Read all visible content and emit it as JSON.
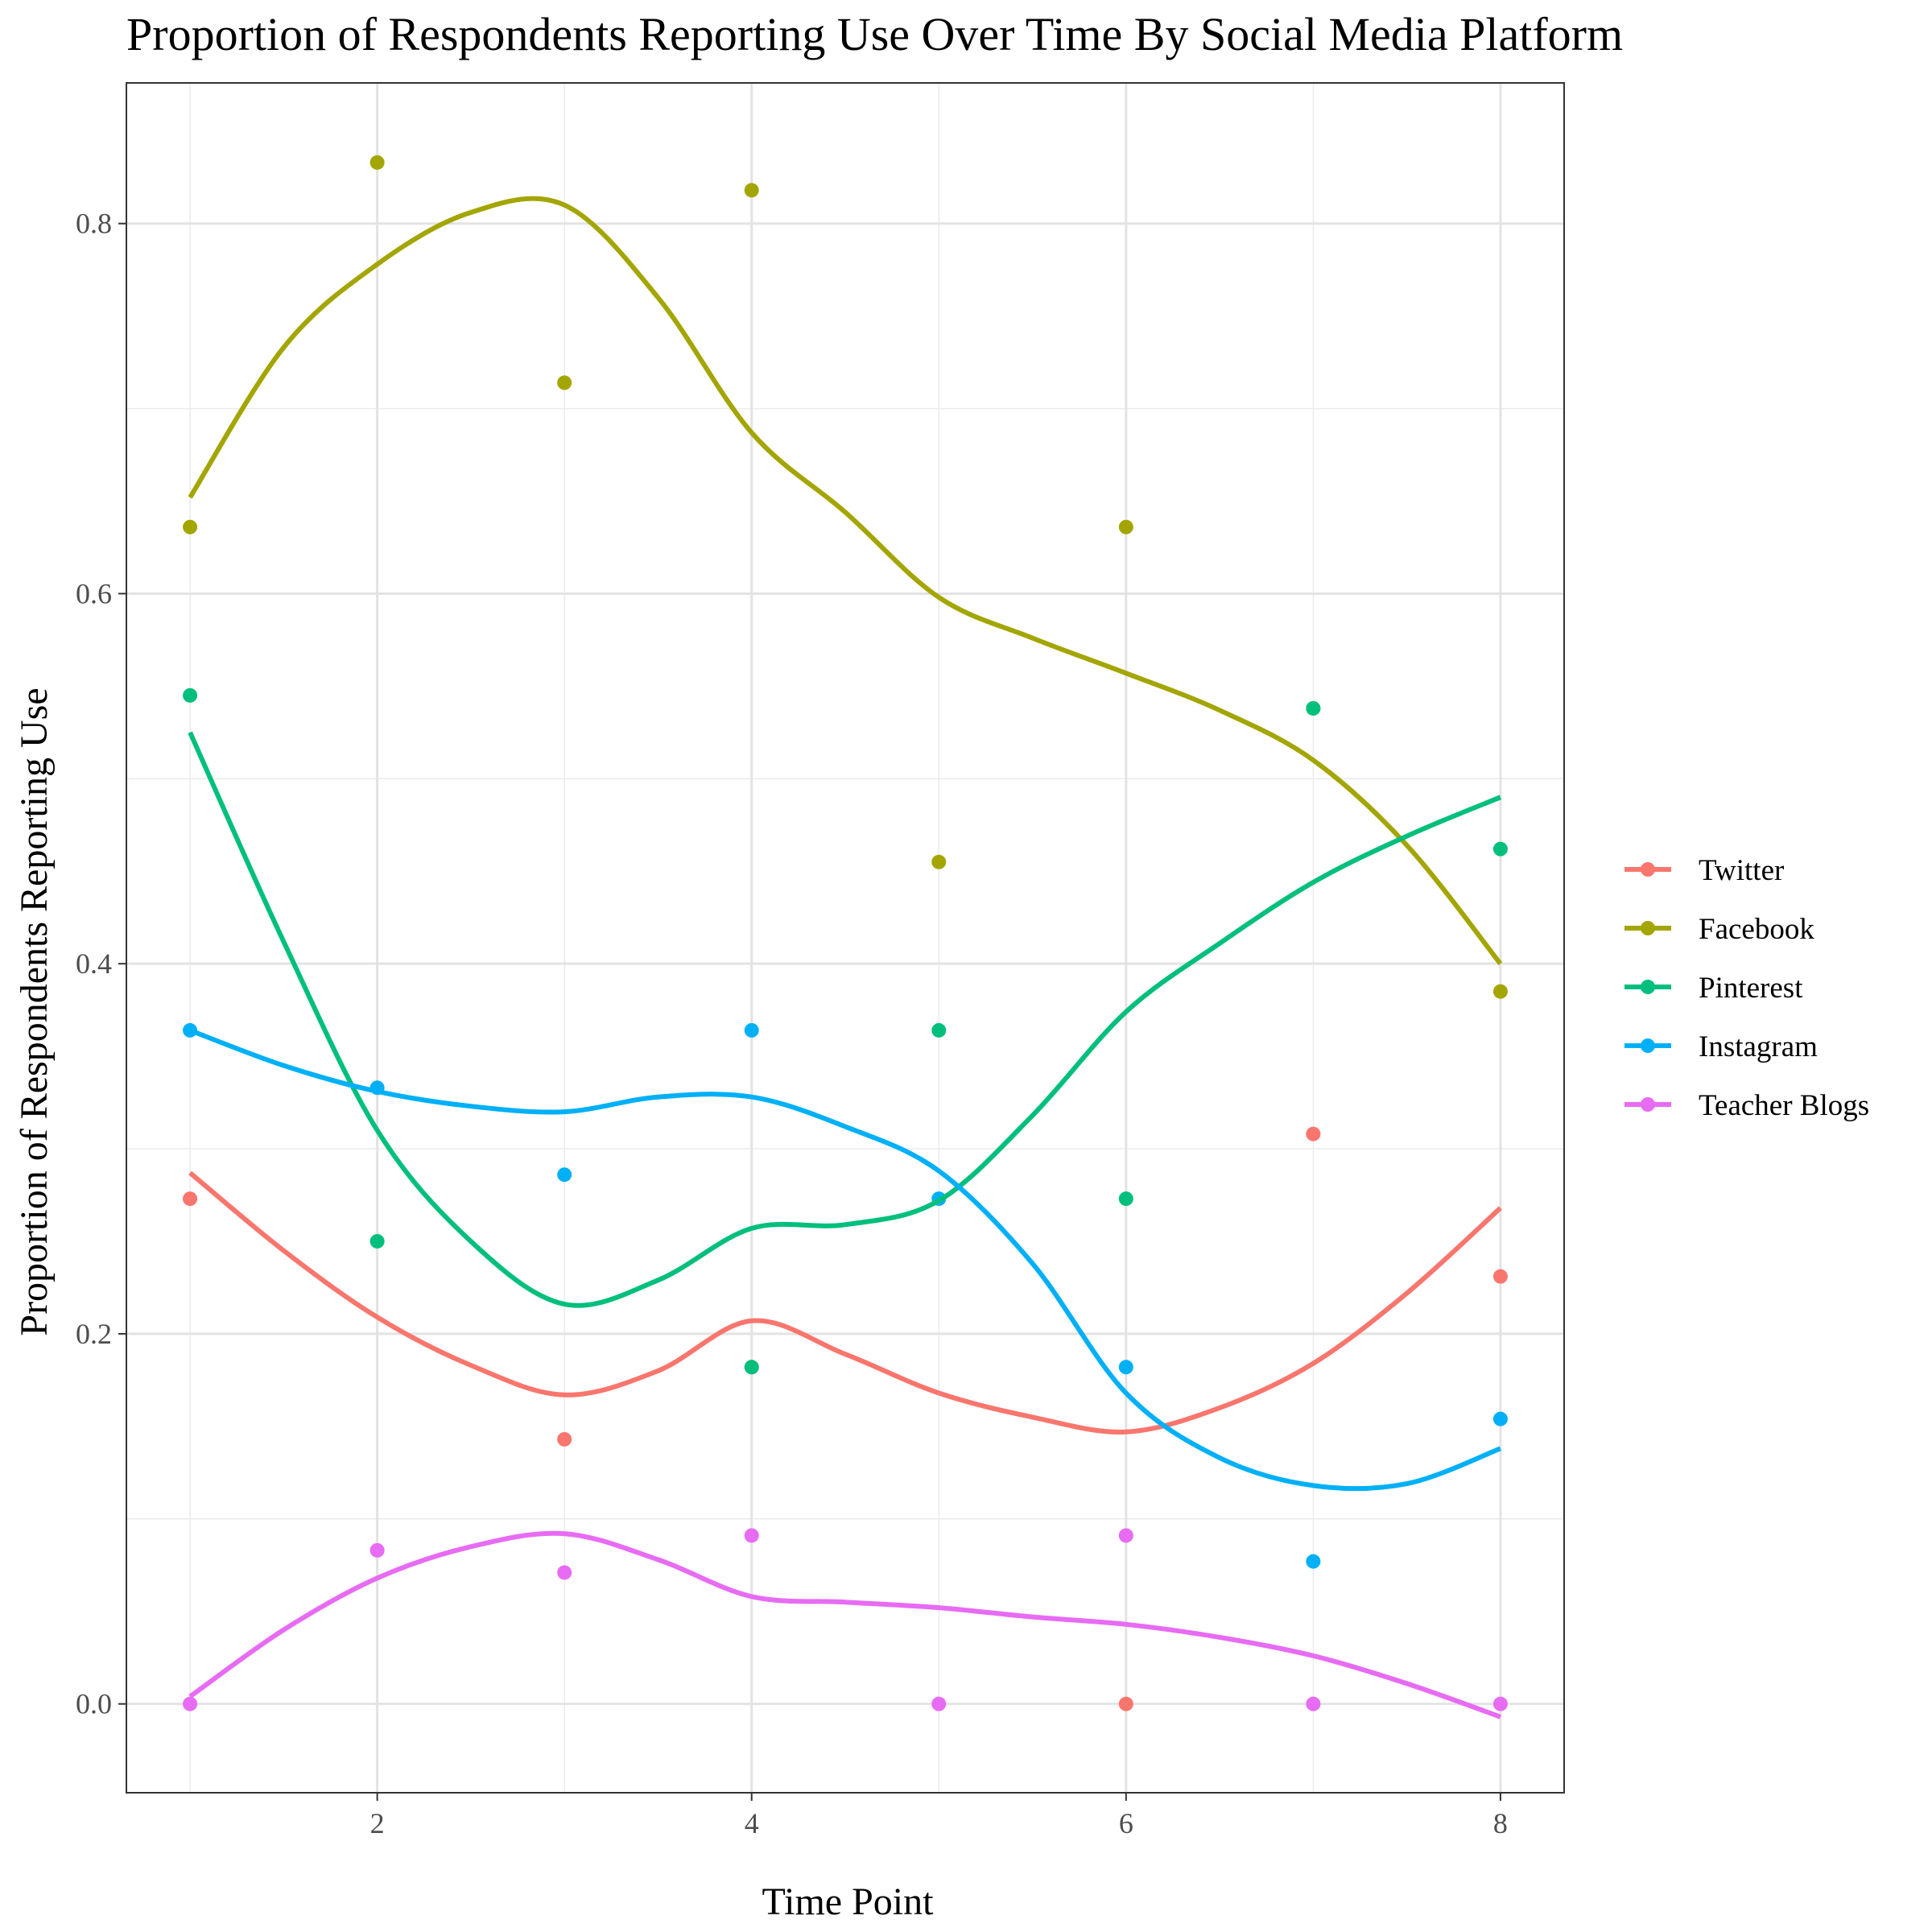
{
  "chart_data": {
    "type": "line",
    "title": "Proportion of Respondents Reporting Use Over Time By Social Media Platform",
    "xlabel": "Time Point",
    "ylabel": "Proportion of Respondents Reporting Use",
    "xlim": [
      0.66,
      8.34
    ],
    "ylim": [
      -0.048,
      0.876
    ],
    "x_ticks": [
      2,
      4,
      6,
      8
    ],
    "x_tick_labels": [
      "2",
      "4",
      "6",
      "8"
    ],
    "y_ticks": [
      0.0,
      0.2,
      0.4,
      0.6,
      0.8
    ],
    "y_tick_labels": [
      "0.0",
      "0.2",
      "0.4",
      "0.6",
      "0.8"
    ],
    "grid": true,
    "legend_position": "right",
    "series": [
      {
        "name": "Twitter",
        "color": "#F8766D",
        "points": [
          [
            1,
            0.273
          ],
          [
            3,
            0.143
          ],
          [
            4,
            0.182
          ],
          [
            6,
            0.0
          ],
          [
            7,
            0.308
          ],
          [
            8,
            0.231
          ]
        ],
        "smooth": [
          [
            1,
            0.287
          ],
          [
            1.5,
            0.245
          ],
          [
            2,
            0.209
          ],
          [
            2.5,
            0.183
          ],
          [
            3,
            0.167
          ],
          [
            3.5,
            0.18
          ],
          [
            4,
            0.207
          ],
          [
            4.5,
            0.189
          ],
          [
            5,
            0.168
          ],
          [
            5.5,
            0.155
          ],
          [
            6,
            0.147
          ],
          [
            6.5,
            0.16
          ],
          [
            7,
            0.184
          ],
          [
            7.5,
            0.222
          ],
          [
            8,
            0.268
          ]
        ]
      },
      {
        "name": "Facebook",
        "color": "#A3A500",
        "points": [
          [
            1,
            0.636
          ],
          [
            2,
            0.833
          ],
          [
            3,
            0.714
          ],
          [
            4,
            0.818
          ],
          [
            5,
            0.455
          ],
          [
            6,
            0.636
          ],
          [
            7,
            0.538
          ],
          [
            8,
            0.385
          ]
        ],
        "smooth": [
          [
            1,
            0.652
          ],
          [
            1.5,
            0.733
          ],
          [
            2,
            0.778
          ],
          [
            2.5,
            0.806
          ],
          [
            3,
            0.81
          ],
          [
            3.5,
            0.76
          ],
          [
            4,
            0.687
          ],
          [
            4.5,
            0.644
          ],
          [
            5,
            0.598
          ],
          [
            5.5,
            0.576
          ],
          [
            6,
            0.557
          ],
          [
            6.5,
            0.537
          ],
          [
            7,
            0.51
          ],
          [
            7.5,
            0.464
          ],
          [
            8,
            0.4
          ]
        ]
      },
      {
        "name": "Pinterest",
        "color": "#00BF7D",
        "points": [
          [
            1,
            0.545
          ],
          [
            2,
            0.25
          ],
          [
            4,
            0.182
          ],
          [
            5,
            0.364
          ],
          [
            6,
            0.273
          ],
          [
            7,
            0.538
          ],
          [
            8,
            0.462
          ]
        ],
        "smooth": [
          [
            1,
            0.525
          ],
          [
            1.5,
            0.412
          ],
          [
            2,
            0.31
          ],
          [
            2.5,
            0.25
          ],
          [
            3,
            0.216
          ],
          [
            3.5,
            0.229
          ],
          [
            4,
            0.257
          ],
          [
            4.5,
            0.259
          ],
          [
            5,
            0.272
          ],
          [
            5.5,
            0.318
          ],
          [
            6,
            0.374
          ],
          [
            6.5,
            0.411
          ],
          [
            7,
            0.444
          ],
          [
            7.5,
            0.469
          ],
          [
            8,
            0.49
          ]
        ]
      },
      {
        "name": "Instagram",
        "color": "#00B0F6",
        "points": [
          [
            1,
            0.364
          ],
          [
            2,
            0.333
          ],
          [
            3,
            0.286
          ],
          [
            4,
            0.364
          ],
          [
            5,
            0.273
          ],
          [
            6,
            0.182
          ],
          [
            7,
            0.077
          ],
          [
            8,
            0.154
          ]
        ],
        "smooth": [
          [
            1,
            0.364
          ],
          [
            1.5,
            0.345
          ],
          [
            2,
            0.331
          ],
          [
            2.5,
            0.323
          ],
          [
            3,
            0.32
          ],
          [
            3.5,
            0.328
          ],
          [
            4,
            0.328
          ],
          [
            4.5,
            0.312
          ],
          [
            5,
            0.288
          ],
          [
            5.5,
            0.238
          ],
          [
            6,
            0.168
          ],
          [
            6.5,
            0.133
          ],
          [
            7,
            0.118
          ],
          [
            7.5,
            0.119
          ],
          [
            8,
            0.138
          ]
        ]
      },
      {
        "name": "Teacher Blogs",
        "color": "#E76BF3",
        "points": [
          [
            1,
            0.0
          ],
          [
            2,
            0.083
          ],
          [
            3,
            0.071
          ],
          [
            4,
            0.091
          ],
          [
            5,
            0.0
          ],
          [
            6,
            0.091
          ],
          [
            7,
            0.0
          ],
          [
            8,
            0.0
          ]
        ],
        "smooth": [
          [
            1,
            0.004
          ],
          [
            1.5,
            0.04
          ],
          [
            2,
            0.068
          ],
          [
            2.5,
            0.085
          ],
          [
            3,
            0.092
          ],
          [
            3.5,
            0.078
          ],
          [
            4,
            0.058
          ],
          [
            4.5,
            0.055
          ],
          [
            5,
            0.052
          ],
          [
            5.5,
            0.047
          ],
          [
            6,
            0.043
          ],
          [
            6.5,
            0.036
          ],
          [
            7,
            0.026
          ],
          [
            7.5,
            0.011
          ],
          [
            8,
            -0.007
          ]
        ]
      }
    ]
  }
}
